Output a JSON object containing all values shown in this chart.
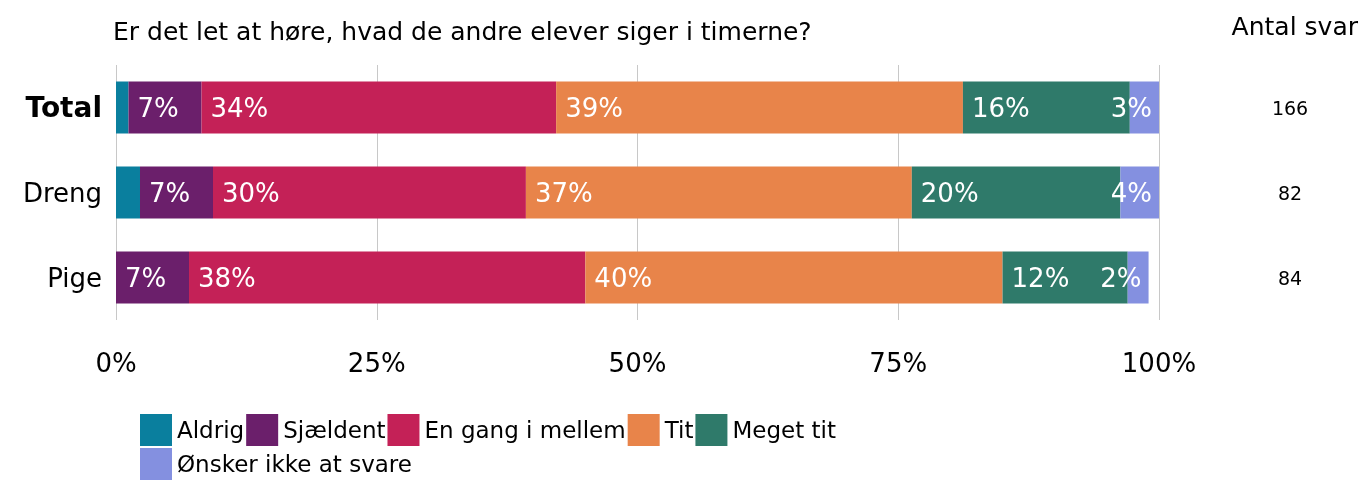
{
  "chart_data": {
    "type": "bar",
    "title": "Er det let at høre, hvad de andre elever siger i timerne?",
    "orientation": "horizontal",
    "stacked": true,
    "categories": [
      "Total",
      "Dreng",
      "Pige"
    ],
    "series": [
      {
        "name": "Aldrig",
        "color": "#0a7f9e",
        "values": [
          1.2,
          2.3,
          0
        ],
        "value_labels": [
          null,
          null,
          null
        ]
      },
      {
        "name": "Sjældent",
        "color": "#6b1f6b",
        "values": [
          7,
          7,
          7
        ],
        "value_labels": [
          "7%",
          "7%",
          "7%"
        ]
      },
      {
        "name": "En gang i mellem",
        "color": "#c42157",
        "values": [
          34,
          30,
          38
        ],
        "value_labels": [
          "34%",
          "30%",
          "38%"
        ]
      },
      {
        "name": "Tit",
        "color": "#e8844a",
        "values": [
          39,
          37,
          40
        ],
        "value_labels": [
          "39%",
          "37%",
          "40%"
        ]
      },
      {
        "name": "Meget tit",
        "color": "#2f7a6a",
        "values": [
          16,
          20,
          12
        ],
        "value_labels": [
          "16%",
          "20%",
          "12%"
        ]
      },
      {
        "name": "Ønsker ikke at svare",
        "color": "#8490e0",
        "values": [
          3,
          4,
          2
        ],
        "value_labels": [
          "3%",
          "4%",
          "2%"
        ]
      }
    ],
    "xlim": [
      0,
      100
    ],
    "xticks": [
      {
        "value": 0,
        "label": "0%"
      },
      {
        "value": 25,
        "label": "25%"
      },
      {
        "value": 50,
        "label": "50%"
      },
      {
        "value": 75,
        "label": "75%"
      },
      {
        "value": 100,
        "label": "100%"
      }
    ],
    "grid": "x",
    "legend": "bottom",
    "annotations": [
      "Antal svar",
      "166",
      "82",
      "84"
    ]
  }
}
